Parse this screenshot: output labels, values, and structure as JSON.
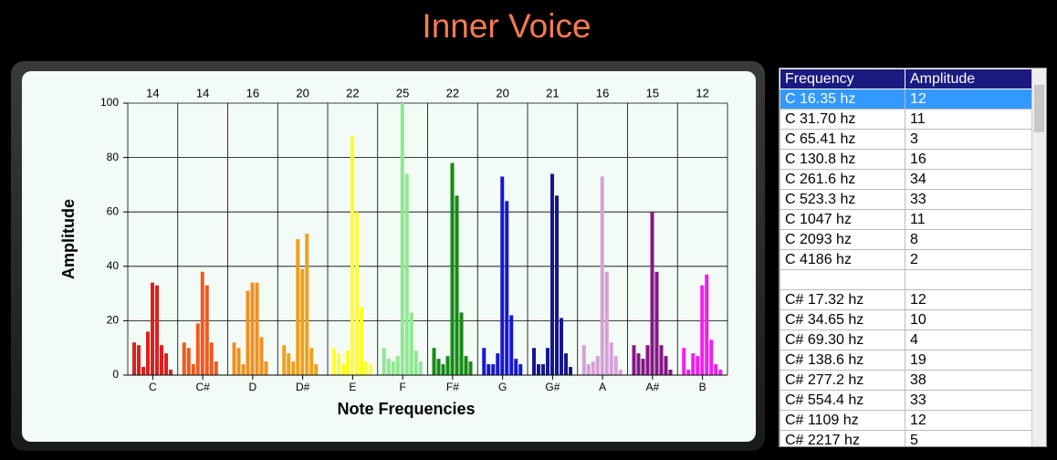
{
  "title": "Inner Voice",
  "chart_data": {
    "type": "grouped-bar",
    "x_label": "Note Frequencies",
    "y_label": "Amplitude",
    "categories": [
      "C",
      "C#",
      "D",
      "D#",
      "E",
      "F",
      "F#",
      "G",
      "G#",
      "A",
      "A#",
      "B"
    ],
    "top_values": [
      14,
      14,
      16,
      20,
      22,
      25,
      22,
      20,
      21,
      16,
      15,
      12
    ],
    "colors": [
      "#e01e1e",
      "#f05a1e",
      "#f0901e",
      "#f0a01e",
      "#ffff28",
      "#90e890",
      "#168a16",
      "#1818d0",
      "#161690",
      "#d8a0d8",
      "#861686",
      "#f01ef0"
    ],
    "values": [
      [
        12,
        11,
        3,
        16,
        34,
        33,
        11,
        8,
        2
      ],
      [
        12,
        10,
        4,
        19,
        38,
        33,
        12,
        5,
        0
      ],
      [
        12,
        10,
        4,
        31,
        34,
        34,
        14,
        5,
        0
      ],
      [
        11,
        8,
        5,
        50,
        39,
        52,
        10,
        4,
        0
      ],
      [
        10,
        8,
        4,
        9,
        88,
        60,
        25,
        5,
        4
      ],
      [
        10,
        6,
        5,
        7,
        100,
        74,
        23,
        9,
        5
      ],
      [
        10,
        6,
        4,
        7,
        78,
        66,
        23,
        7,
        5
      ],
      [
        10,
        4,
        4,
        8,
        73,
        64,
        22,
        6,
        4
      ],
      [
        10,
        4,
        4,
        10,
        74,
        66,
        21,
        8,
        3
      ],
      [
        11,
        4,
        5,
        7,
        73,
        38,
        12,
        7,
        2
      ],
      [
        11,
        8,
        6,
        11,
        60,
        38,
        11,
        7,
        2
      ],
      [
        10,
        2,
        8,
        7,
        33,
        37,
        13,
        4,
        2
      ]
    ],
    "ylim": [
      0,
      100
    ],
    "yticks": [
      0,
      20,
      40,
      60,
      80,
      100
    ],
    "grid": true
  },
  "table": {
    "columns": [
      "Frequency",
      "Amplitude"
    ],
    "groups": [
      [
        [
          "C 16.35 hz",
          12
        ],
        [
          "C 31.70 hz",
          11
        ],
        [
          "C 65.41 hz",
          3
        ],
        [
          "C 130.8 hz",
          16
        ],
        [
          "C 261.6 hz",
          34
        ],
        [
          "C 523.3 hz",
          33
        ],
        [
          "C 1047 hz",
          11
        ],
        [
          "C 2093 hz",
          8
        ],
        [
          "C 4186 hz",
          2
        ]
      ],
      [
        [
          "C# 17.32 hz",
          12
        ],
        [
          "C# 34.65 hz",
          10
        ],
        [
          "C# 69.30 hz",
          4
        ],
        [
          "C# 138.6 hz",
          19
        ],
        [
          "C# 277.2 hz",
          38
        ],
        [
          "C# 554.4 hz",
          33
        ],
        [
          "C# 1109 hz",
          12
        ],
        [
          "C# 2217 hz",
          5
        ]
      ]
    ]
  }
}
